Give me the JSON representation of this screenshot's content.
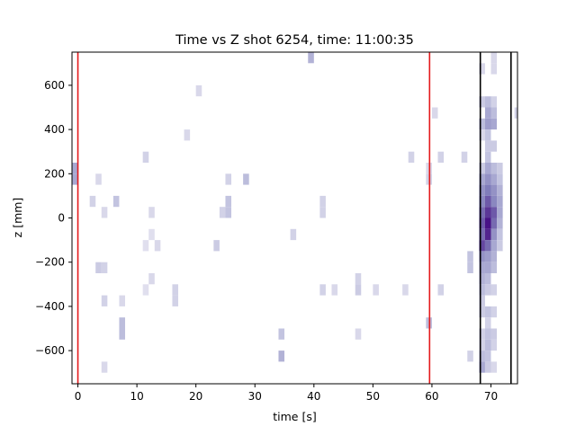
{
  "chart_data": {
    "type": "heatmap",
    "title": "Time vs Z shot 6254, time: 11:00:35",
    "xlabel": "time [s]",
    "ylabel": "z [mm]",
    "xlim": [
      -1,
      74.5
    ],
    "ylim": [
      -750,
      750
    ],
    "xticks": [
      0,
      10,
      20,
      30,
      40,
      50,
      60,
      70
    ],
    "yticks": [
      -600,
      -400,
      -200,
      0,
      200,
      400,
      600
    ],
    "cell_width_s": 1,
    "cell_height_mm": 50,
    "colormap": "Purples",
    "red_lines_x": [
      0,
      59.6
    ],
    "black_lines_x": [
      68.2,
      73.4
    ],
    "red_color": "#e41a1c",
    "black_color": "#000000",
    "cells": [
      {
        "t": -1,
        "z": 175,
        "v": 0.45
      },
      {
        "t": -1,
        "z": 225,
        "v": 0.45
      },
      {
        "t": 2,
        "z": 75,
        "v": 0.2
      },
      {
        "t": 3,
        "z": 175,
        "v": 0.15
      },
      {
        "t": 3,
        "z": -225,
        "v": 0.25
      },
      {
        "t": 4,
        "z": -225,
        "v": 0.2
      },
      {
        "t": 4,
        "z": -375,
        "v": 0.2
      },
      {
        "t": 4,
        "z": -675,
        "v": 0.15
      },
      {
        "t": 4,
        "z": 25,
        "v": 0.15
      },
      {
        "t": 6,
        "z": 75,
        "v": 0.3
      },
      {
        "t": 7,
        "z": -475,
        "v": 0.35
      },
      {
        "t": 7,
        "z": -525,
        "v": 0.35
      },
      {
        "t": 7,
        "z": -375,
        "v": 0.15
      },
      {
        "t": 11,
        "z": -325,
        "v": 0.1
      },
      {
        "t": 12,
        "z": 25,
        "v": 0.15
      },
      {
        "t": 12,
        "z": -75,
        "v": 0.1
      },
      {
        "t": 11,
        "z": -125,
        "v": 0.1
      },
      {
        "t": 13,
        "z": -125,
        "v": 0.15
      },
      {
        "t": 11,
        "z": 275,
        "v": 0.2
      },
      {
        "t": 12,
        "z": -275,
        "v": 0.15
      },
      {
        "t": 16,
        "z": -325,
        "v": 0.2
      },
      {
        "t": 16,
        "z": -375,
        "v": 0.2
      },
      {
        "t": 18,
        "z": 375,
        "v": 0.15
      },
      {
        "t": 20,
        "z": 575,
        "v": 0.15
      },
      {
        "t": 23,
        "z": -125,
        "v": 0.25
      },
      {
        "t": 24,
        "z": 25,
        "v": 0.2
      },
      {
        "t": 25,
        "z": 175,
        "v": 0.2
      },
      {
        "t": 25,
        "z": 75,
        "v": 0.3
      },
      {
        "t": 25,
        "z": 25,
        "v": 0.3
      },
      {
        "t": 28,
        "z": 175,
        "v": 0.35
      },
      {
        "t": 34,
        "z": -625,
        "v": 0.4
      },
      {
        "t": 34,
        "z": -525,
        "v": 0.3
      },
      {
        "t": 36,
        "z": -75,
        "v": 0.2
      },
      {
        "t": 39,
        "z": 725,
        "v": 0.4
      },
      {
        "t": 41,
        "z": 75,
        "v": 0.2
      },
      {
        "t": 41,
        "z": 25,
        "v": 0.2
      },
      {
        "t": 41,
        "z": -325,
        "v": 0.2
      },
      {
        "t": 43,
        "z": -325,
        "v": 0.15
      },
      {
        "t": 47,
        "z": -275,
        "v": 0.2
      },
      {
        "t": 47,
        "z": -325,
        "v": 0.25
      },
      {
        "t": 47,
        "z": -525,
        "v": 0.15
      },
      {
        "t": 50,
        "z": -325,
        "v": 0.15
      },
      {
        "t": 55,
        "z": -325,
        "v": 0.15
      },
      {
        "t": 56,
        "z": 275,
        "v": 0.2
      },
      {
        "t": 59,
        "z": 175,
        "v": 0.2
      },
      {
        "t": 59,
        "z": 225,
        "v": 0.15
      },
      {
        "t": 59,
        "z": -475,
        "v": 0.35
      },
      {
        "t": 60,
        "z": 475,
        "v": 0.15
      },
      {
        "t": 61,
        "z": 275,
        "v": 0.2
      },
      {
        "t": 61,
        "z": -325,
        "v": 0.2
      },
      {
        "t": 65,
        "z": 275,
        "v": 0.2
      },
      {
        "t": 66,
        "z": -225,
        "v": 0.3
      },
      {
        "t": 66,
        "z": -175,
        "v": 0.3
      },
      {
        "t": 66,
        "z": -625,
        "v": 0.2
      },
      {
        "t": 68,
        "z": 675,
        "v": 0.15
      },
      {
        "t": 68,
        "z": 525,
        "v": 0.25
      },
      {
        "t": 68,
        "z": 425,
        "v": 0.35
      },
      {
        "t": 68,
        "z": 375,
        "v": 0.15
      },
      {
        "t": 68,
        "z": 225,
        "v": 0.25
      },
      {
        "t": 68,
        "z": 175,
        "v": 0.45
      },
      {
        "t": 68,
        "z": 125,
        "v": 0.55
      },
      {
        "t": 68,
        "z": 75,
        "v": 0.6
      },
      {
        "t": 68,
        "z": 25,
        "v": 0.7
      },
      {
        "t": 68,
        "z": -25,
        "v": 0.75
      },
      {
        "t": 68,
        "z": -75,
        "v": 0.7
      },
      {
        "t": 68,
        "z": -125,
        "v": 0.8
      },
      {
        "t": 68,
        "z": -175,
        "v": 0.55
      },
      {
        "t": 68,
        "z": -225,
        "v": 0.45
      },
      {
        "t": 68,
        "z": -275,
        "v": 0.4
      },
      {
        "t": 68,
        "z": -325,
        "v": 0.35
      },
      {
        "t": 68,
        "z": -375,
        "v": 0.25
      },
      {
        "t": 68,
        "z": -425,
        "v": 0.25
      },
      {
        "t": 68,
        "z": -525,
        "v": 0.2
      },
      {
        "t": 68,
        "z": -575,
        "v": 0.2
      },
      {
        "t": 68,
        "z": -625,
        "v": 0.35
      },
      {
        "t": 68,
        "z": -675,
        "v": 0.45
      },
      {
        "t": 69,
        "z": 525,
        "v": 0.35
      },
      {
        "t": 69,
        "z": 475,
        "v": 0.45
      },
      {
        "t": 69,
        "z": 425,
        "v": 0.5
      },
      {
        "t": 69,
        "z": 375,
        "v": 0.3
      },
      {
        "t": 69,
        "z": 325,
        "v": 0.25
      },
      {
        "t": 69,
        "z": 275,
        "v": 0.3
      },
      {
        "t": 69,
        "z": 225,
        "v": 0.45
      },
      {
        "t": 69,
        "z": 175,
        "v": 0.55
      },
      {
        "t": 69,
        "z": 125,
        "v": 0.65
      },
      {
        "t": 69,
        "z": 75,
        "v": 0.75
      },
      {
        "t": 69,
        "z": 25,
        "v": 0.85
      },
      {
        "t": 69,
        "z": -25,
        "v": 0.95
      },
      {
        "t": 69,
        "z": -75,
        "v": 0.9
      },
      {
        "t": 69,
        "z": -125,
        "v": 0.7
      },
      {
        "t": 69,
        "z": -175,
        "v": 0.5
      },
      {
        "t": 69,
        "z": -225,
        "v": 0.45
      },
      {
        "t": 69,
        "z": -275,
        "v": 0.35
      },
      {
        "t": 69,
        "z": -325,
        "v": 0.25
      },
      {
        "t": 69,
        "z": -425,
        "v": 0.3
      },
      {
        "t": 69,
        "z": -475,
        "v": 0.2
      },
      {
        "t": 69,
        "z": -525,
        "v": 0.3
      },
      {
        "t": 69,
        "z": -575,
        "v": 0.35
      },
      {
        "t": 69,
        "z": -625,
        "v": 0.3
      },
      {
        "t": 69,
        "z": -675,
        "v": 0.25
      },
      {
        "t": 70,
        "z": 725,
        "v": 0.15
      },
      {
        "t": 70,
        "z": 675,
        "v": 0.15
      },
      {
        "t": 70,
        "z": 525,
        "v": 0.2
      },
      {
        "t": 70,
        "z": 475,
        "v": 0.35
      },
      {
        "t": 70,
        "z": 425,
        "v": 0.45
      },
      {
        "t": 70,
        "z": 325,
        "v": 0.25
      },
      {
        "t": 70,
        "z": 225,
        "v": 0.35
      },
      {
        "t": 70,
        "z": 175,
        "v": 0.45
      },
      {
        "t": 70,
        "z": 125,
        "v": 0.55
      },
      {
        "t": 70,
        "z": 75,
        "v": 0.6
      },
      {
        "t": 70,
        "z": 25,
        "v": 0.75
      },
      {
        "t": 70,
        "z": -25,
        "v": 0.7
      },
      {
        "t": 70,
        "z": -75,
        "v": 0.55
      },
      {
        "t": 70,
        "z": -125,
        "v": 0.45
      },
      {
        "t": 70,
        "z": -175,
        "v": 0.4
      },
      {
        "t": 70,
        "z": -225,
        "v": 0.35
      },
      {
        "t": 70,
        "z": -325,
        "v": 0.2
      },
      {
        "t": 70,
        "z": -425,
        "v": 0.2
      },
      {
        "t": 70,
        "z": -525,
        "v": 0.25
      },
      {
        "t": 70,
        "z": -575,
        "v": 0.2
      },
      {
        "t": 70,
        "z": -675,
        "v": 0.15
      },
      {
        "t": 71,
        "z": 225,
        "v": 0.25
      },
      {
        "t": 71,
        "z": 175,
        "v": 0.3
      },
      {
        "t": 71,
        "z": 125,
        "v": 0.4
      },
      {
        "t": 71,
        "z": 75,
        "v": 0.45
      },
      {
        "t": 71,
        "z": 25,
        "v": 0.45
      },
      {
        "t": 71,
        "z": -25,
        "v": 0.4
      },
      {
        "t": 71,
        "z": -75,
        "v": 0.3
      },
      {
        "t": 71,
        "z": -125,
        "v": 0.25
      },
      {
        "t": 74,
        "z": 475,
        "v": 0.2
      }
    ]
  }
}
